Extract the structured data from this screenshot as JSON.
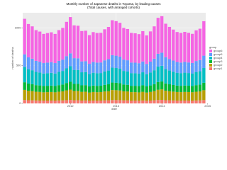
{
  "chart_data": {
    "type": "stacked_bar",
    "title": "Monthly number of Japanese deaths in Toyama, by leading causes",
    "subtitle": "(Total causes, with arranged cohorts)",
    "x_label": "date",
    "y_label": "number of deaths",
    "legend_title": "group",
    "legend_position": "right",
    "grid": true,
    "categories": [
      null,
      null,
      null,
      null,
      null,
      null,
      null,
      null,
      null,
      null,
      null,
      null,
      null,
      null,
      null,
      null,
      null,
      null,
      null,
      null,
      null,
      null,
      null,
      null,
      null,
      null,
      null,
      null,
      null,
      null,
      null,
      null,
      null,
      null,
      null,
      null,
      null,
      null,
      null,
      null,
      null,
      null,
      null,
      null,
      null,
      null,
      null,
      null
    ],
    "xticks": [
      {
        "value": 12,
        "label": "2012"
      },
      {
        "value": 24,
        "label": "2013"
      },
      {
        "value": 36,
        "label": "2014"
      },
      {
        "value": 48,
        "label": "2015"
      }
    ],
    "ylim": [
      0,
      1200
    ],
    "yticks": [
      0,
      500,
      1000
    ],
    "series": [
      {
        "name": "group1",
        "color": "#F8766D",
        "values": [
          45,
          42,
          41,
          39,
          38,
          37,
          37,
          38,
          37,
          39,
          40,
          43,
          46,
          41,
          42,
          38,
          39,
          36,
          38,
          37,
          38,
          40,
          41,
          44,
          44,
          43,
          40,
          40,
          37,
          38,
          36,
          39,
          36,
          38,
          41,
          45,
          47,
          42,
          41,
          39,
          38,
          37,
          38,
          38,
          37,
          39,
          40,
          44
        ]
      },
      {
        "name": "group2",
        "color": "#B79F00",
        "values": [
          134,
          126,
          122,
          116,
          114,
          110,
          112,
          113,
          110,
          116,
          120,
          130,
          137,
          124,
          123,
          115,
          116,
          108,
          113,
          111,
          112,
          118,
          121,
          133,
          131,
          128,
          120,
          118,
          112,
          111,
          110,
          115,
          108,
          114,
          122,
          136,
          139,
          127,
          121,
          117,
          113,
          112,
          114,
          112,
          111,
          116,
          119,
          131
        ]
      },
      {
        "name": "group3",
        "color": "#00BA38",
        "values": [
          101,
          95,
          92,
          87,
          86,
          83,
          84,
          85,
          83,
          87,
          90,
          97,
          103,
          93,
          93,
          86,
          87,
          81,
          85,
          84,
          84,
          88,
          91,
          99,
          98,
          96,
          90,
          88,
          84,
          84,
          83,
          86,
          81,
          86,
          92,
          102,
          104,
          95,
          91,
          88,
          85,
          84,
          85,
          84,
          83,
          87,
          89,
          98
        ]
      },
      {
        "name": "group4",
        "color": "#00BFC4",
        "values": [
          202,
          189,
          184,
          175,
          171,
          166,
          167,
          169,
          166,
          175,
          180,
          194,
          206,
          186,
          185,
          173,
          173,
          163,
          170,
          168,
          168,
          177,
          182,
          198,
          196,
          192,
          180,
          177,
          168,
          167,
          165,
          172,
          162,
          172,
          184,
          204,
          208,
          190,
          182,
          176,
          170,
          168,
          170,
          168,
          166,
          174,
          178,
          196
        ]
      },
      {
        "name": "group5",
        "color": "#619CFF",
        "values": [
          168,
          158,
          153,
          146,
          143,
          138,
          140,
          141,
          138,
          146,
          150,
          162,
          171,
          155,
          154,
          144,
          144,
          136,
          142,
          140,
          140,
          147,
          152,
          165,
          163,
          160,
          150,
          148,
          140,
          139,
          138,
          143,
          135,
          143,
          153,
          170,
          173,
          158,
          152,
          147,
          142,
          140,
          142,
          140,
          138,
          145,
          148,
          163
        ]
      },
      {
        "name": "group6",
        "color": "#F564E3",
        "values": [
          470,
          441,
          428,
          407,
          399,
          386,
          391,
          395,
          386,
          407,
          420,
          454,
          480,
          434,
          431,
          402,
          403,
          380,
          396,
          392,
          392,
          411,
          425,
          462,
          457,
          448,
          420,
          414,
          392,
          389,
          385,
          401,
          378,
          400,
          428,
          476,
          484,
          443,
          426,
          410,
          397,
          392,
          398,
          392,
          386,
          406,
          415,
          456
        ]
      }
    ]
  }
}
